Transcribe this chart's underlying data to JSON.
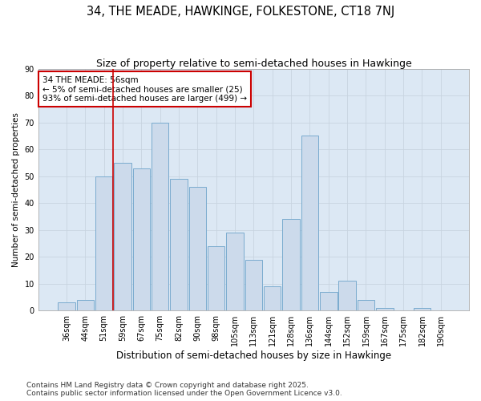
{
  "title": "34, THE MEADE, HAWKINGE, FOLKESTONE, CT18 7NJ",
  "subtitle": "Size of property relative to semi-detached houses in Hawkinge",
  "xlabel": "Distribution of semi-detached houses by size in Hawkinge",
  "ylabel": "Number of semi-detached properties",
  "categories": [
    "36sqm",
    "44sqm",
    "51sqm",
    "59sqm",
    "67sqm",
    "75sqm",
    "82sqm",
    "90sqm",
    "98sqm",
    "105sqm",
    "113sqm",
    "121sqm",
    "128sqm",
    "136sqm",
    "144sqm",
    "152sqm",
    "159sqm",
    "167sqm",
    "175sqm",
    "182sqm",
    "190sqm"
  ],
  "values": [
    3,
    4,
    50,
    55,
    53,
    70,
    49,
    46,
    24,
    29,
    19,
    9,
    34,
    65,
    7,
    11,
    4,
    1,
    0,
    1,
    0
  ],
  "bar_color": "#ccdaeb",
  "bar_edge_color": "#7aabcf",
  "vline_x": 2.5,
  "vline_color": "#cc0000",
  "annotation_text": "34 THE MEADE: 56sqm\n← 5% of semi-detached houses are smaller (25)\n93% of semi-detached houses are larger (499) →",
  "annotation_box_facecolor": "#ffffff",
  "annotation_box_edgecolor": "#cc0000",
  "ylim": [
    0,
    90
  ],
  "yticks": [
    0,
    10,
    20,
    30,
    40,
    50,
    60,
    70,
    80,
    90
  ],
  "grid_color": "#c8d4e0",
  "bg_color": "#dce8f4",
  "fig_bg_color": "#ffffff",
  "footer_line1": "Contains HM Land Registry data © Crown copyright and database right 2025.",
  "footer_line2": "Contains public sector information licensed under the Open Government Licence v3.0.",
  "title_fontsize": 10.5,
  "subtitle_fontsize": 9,
  "xlabel_fontsize": 8.5,
  "ylabel_fontsize": 7.5,
  "tick_fontsize": 7,
  "annotation_fontsize": 7.5,
  "footer_fontsize": 6.5
}
